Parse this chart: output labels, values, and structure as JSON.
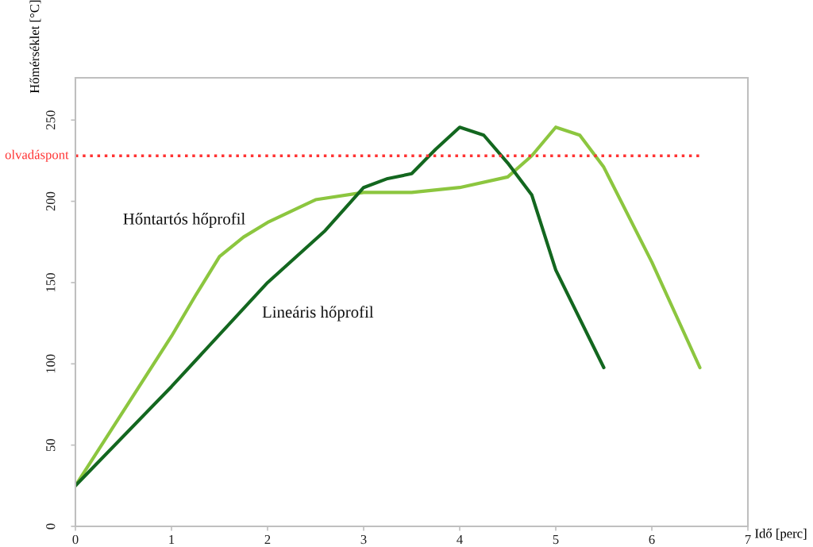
{
  "chart_data": {
    "type": "line",
    "xlabel": "Idő [perc]",
    "ylabel": "Hőmérséklet [°C]",
    "xlim": [
      0,
      7
    ],
    "xticks": [
      0,
      1,
      2,
      3,
      4,
      5,
      6,
      7
    ],
    "ylim": [
      0,
      276
    ],
    "yticks": [
      0,
      50,
      100,
      150,
      200,
      250
    ],
    "grid": false,
    "legend": false,
    "marker": "none",
    "line_style": "solid",
    "ref_lines": [
      {
        "axis": "y",
        "value": 228,
        "label": "olvadáspont",
        "color": "#ff3333",
        "line_style": "dotted"
      }
    ],
    "series": [
      {
        "name": "Hőntartós hőprofil",
        "color": "#8cc63f",
        "x": [
          0,
          0.5,
          1,
          1.25,
          1.5,
          1.75,
          2,
          2.5,
          3,
          3.5,
          4,
          4.5,
          4.75,
          5,
          5.25,
          5.5,
          6,
          6.5
        ],
        "values": [
          25,
          71,
          117,
          142,
          166,
          178,
          187,
          201,
          205.5,
          205.5,
          208.5,
          215,
          228,
          245.6,
          240.7,
          221,
          162.6,
          97.7
        ]
      },
      {
        "name": "Lineáris hőprofil",
        "color": "#13671f",
        "x": [
          0,
          1,
          2,
          2.6,
          3,
          3.25,
          3.5,
          3.75,
          4,
          4.25,
          4.5,
          4.75,
          5,
          5.5
        ],
        "values": [
          25,
          86,
          150,
          182,
          208.5,
          214,
          217,
          232,
          245.6,
          240.7,
          223.6,
          204,
          157.7,
          97.7
        ]
      }
    ]
  }
}
